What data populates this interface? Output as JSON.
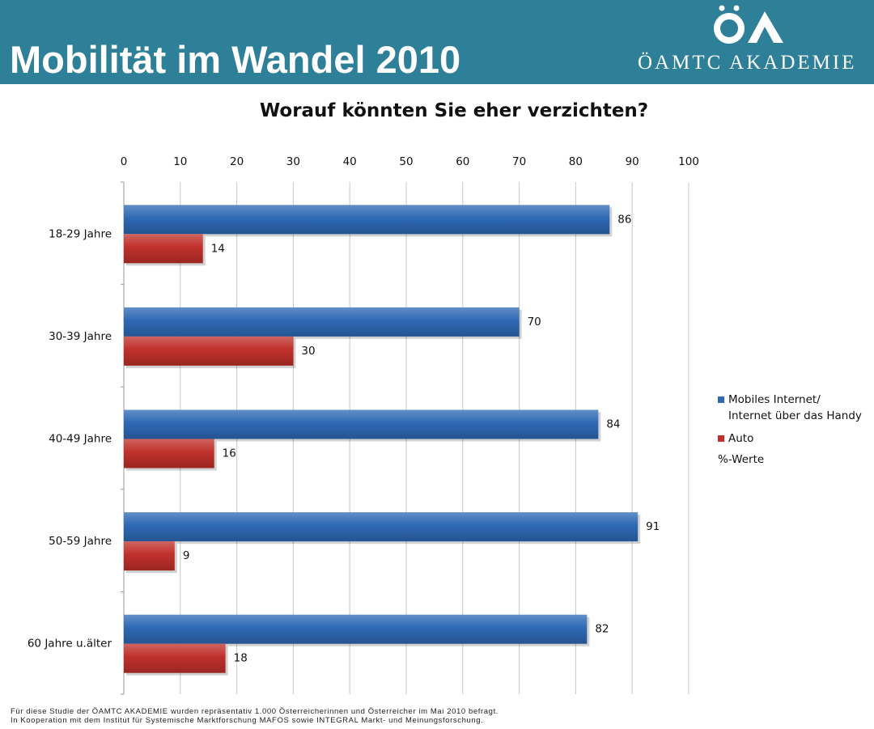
{
  "header": {
    "title": "Mobilität im Wandel 2010",
    "logo_text": "ÖAMTC AKADEMIE",
    "bg_color": "#2e7f98"
  },
  "chart_data": {
    "type": "bar",
    "orientation": "horizontal",
    "title": "Worauf könnten Sie eher verzichten?",
    "categories": [
      "18-29 Jahre",
      "30-39 Jahre",
      "40-49 Jahre",
      "50-59 Jahre",
      "60 Jahre u.älter"
    ],
    "series": [
      {
        "name": "Mobiles Internet/ Internet über das Handy",
        "name_lines": [
          "Mobiles Internet/",
          "Internet über das Handy"
        ],
        "color": "#2e69b5",
        "values": [
          86,
          70,
          84,
          91,
          82
        ]
      },
      {
        "name": "Auto",
        "name_lines": [
          "Auto"
        ],
        "color": "#c0302b",
        "values": [
          14,
          30,
          16,
          9,
          18
        ]
      }
    ],
    "xlim": [
      0,
      100
    ],
    "xticks": [
      0,
      10,
      20,
      30,
      40,
      50,
      60,
      70,
      80,
      90,
      100
    ],
    "x_axis_position": "top",
    "grid": true,
    "unit_note": "%-Werte",
    "legend_position": "right"
  },
  "footnote": {
    "line1": "Für diese Studie der ÖAMTC AKADEMIE wurden repräsentativ 1.000 Österreicherinnen und Österreicher im Mai 2010 befragt.",
    "line2": "In Kooperation mit dem Institut für Systemische Marktforschung MAFOS sowie INTEGRAL Markt- und Meinungsforschung."
  }
}
